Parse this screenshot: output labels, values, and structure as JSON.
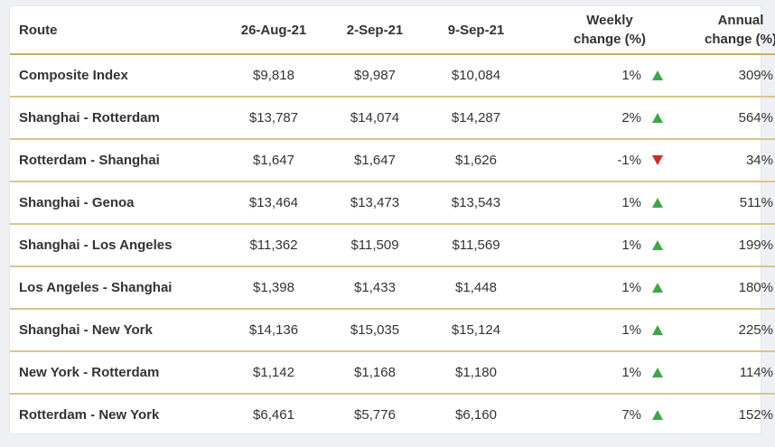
{
  "chart_data": {
    "type": "table",
    "columns": [
      "Route",
      "26-Aug-21",
      "2-Sep-21",
      "9-Sep-21",
      "Weekly change (%)",
      "Annual change (%)"
    ],
    "header": {
      "route": "Route",
      "d1": "26-Aug-21",
      "d2": "2-Sep-21",
      "d3": "9-Sep-21",
      "weekly_line1": "Weekly",
      "weekly_line2": "change (%)",
      "annual_line1": "Annual",
      "annual_line2": "change (%)"
    },
    "rows": [
      {
        "route": "Composite Index",
        "d1": "$9,818",
        "d2": "$9,987",
        "d3": "$10,084",
        "weekly": "1%",
        "weekly_dir": "up",
        "annual": "309%",
        "annual_dir": "up"
      },
      {
        "route": "Shanghai - Rotterdam",
        "d1": "$13,787",
        "d2": "$14,074",
        "d3": "$14,287",
        "weekly": "2%",
        "weekly_dir": "up",
        "annual": "564%",
        "annual_dir": "up"
      },
      {
        "route": "Rotterdam - Shanghai",
        "d1": "$1,647",
        "d2": "$1,647",
        "d3": "$1,626",
        "weekly": "-1%",
        "weekly_dir": "down",
        "annual": "34%",
        "annual_dir": "up"
      },
      {
        "route": "Shanghai - Genoa",
        "d1": "$13,464",
        "d2": "$13,473",
        "d3": "$13,543",
        "weekly": "1%",
        "weekly_dir": "up",
        "annual": "511%",
        "annual_dir": "up"
      },
      {
        "route": "Shanghai - Los Angeles",
        "d1": "$11,362",
        "d2": "$11,509",
        "d3": "$11,569",
        "weekly": "1%",
        "weekly_dir": "up",
        "annual": "199%",
        "annual_dir": "up"
      },
      {
        "route": "Los Angeles - Shanghai",
        "d1": "$1,398",
        "d2": "$1,433",
        "d3": "$1,448",
        "weekly": "1%",
        "weekly_dir": "up",
        "annual": "180%",
        "annual_dir": "up"
      },
      {
        "route": "Shanghai - New York",
        "d1": "$14,136",
        "d2": "$15,035",
        "d3": "$15,124",
        "weekly": "1%",
        "weekly_dir": "up",
        "annual": "225%",
        "annual_dir": "up"
      },
      {
        "route": "New York - Rotterdam",
        "d1": "$1,142",
        "d2": "$1,168",
        "d3": "$1,180",
        "weekly": "1%",
        "weekly_dir": "up",
        "annual": "114%",
        "annual_dir": "up"
      },
      {
        "route": "Rotterdam - New York",
        "d1": "$6,461",
        "d2": "$5,776",
        "d3": "$6,160",
        "weekly": "7%",
        "weekly_dir": "up",
        "annual": "152%",
        "annual_dir": "up"
      }
    ],
    "colors": {
      "up": "#3da64a",
      "down": "#d22a2a",
      "rule": "#c8ae67",
      "background": "#eef0f4"
    }
  }
}
